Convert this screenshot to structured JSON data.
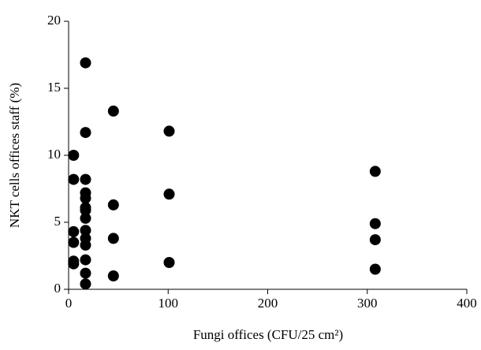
{
  "chart_data": {
    "type": "scatter",
    "x_label": "Fungi offices (CFU/25 cm²)",
    "y_label": "NKT cells offices staff (%)",
    "x": [
      5,
      5,
      5,
      5,
      5,
      5,
      17,
      17,
      17,
      17,
      17,
      17,
      17,
      17,
      17,
      17,
      17,
      17,
      17,
      17,
      45,
      45,
      45,
      45,
      101,
      101,
      101,
      308,
      308,
      308,
      308
    ],
    "values": [
      10.0,
      8.2,
      4.3,
      3.5,
      2.1,
      1.9,
      16.9,
      11.7,
      8.2,
      7.2,
      6.8,
      6.1,
      5.9,
      5.3,
      4.4,
      3.8,
      3.3,
      2.2,
      1.2,
      0.4,
      13.3,
      6.3,
      3.8,
      1.0,
      11.8,
      7.1,
      2.0,
      8.8,
      4.9,
      3.7,
      1.5
    ],
    "color": "#000000",
    "xlim": [
      0,
      400
    ],
    "xticks": [
      0,
      100,
      200,
      300,
      400
    ],
    "ylim": [
      0,
      20
    ],
    "yticks": [
      0,
      5,
      10,
      15,
      20
    ]
  }
}
